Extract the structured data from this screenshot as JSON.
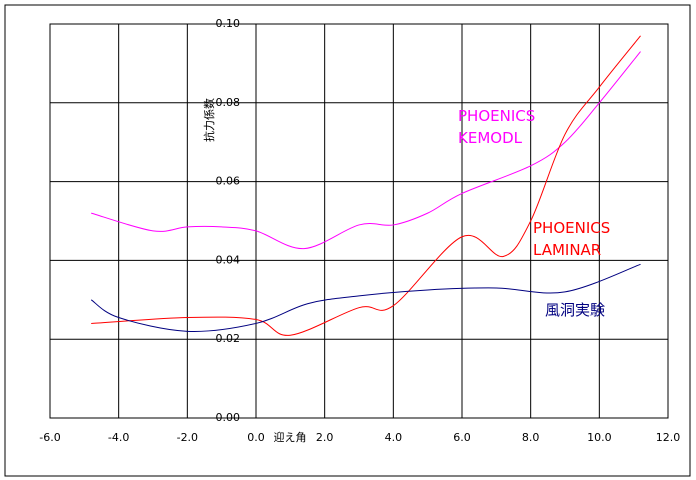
{
  "chart_data": {
    "type": "line",
    "x_label": "迎え角",
    "y_label": "抗力係数",
    "xlim": [
      -6,
      12
    ],
    "ylim": [
      0,
      0.1
    ],
    "xticks": [
      {
        "value": -6,
        "label": "-6.0"
      },
      {
        "value": -4,
        "label": "-4.0"
      },
      {
        "value": -2,
        "label": "-2.0"
      },
      {
        "value": 0,
        "label": "0.0"
      },
      {
        "value": 2,
        "label": "2.0"
      },
      {
        "value": 4,
        "label": "4.0"
      },
      {
        "value": 6,
        "label": "6.0"
      },
      {
        "value": 8,
        "label": "8.0"
      },
      {
        "value": 10,
        "label": "10.0"
      },
      {
        "value": 12,
        "label": "12.0"
      }
    ],
    "yticks": [
      {
        "value": 0,
        "label": "0.00"
      },
      {
        "value": 0.02,
        "label": "0.02"
      },
      {
        "value": 0.04,
        "label": "0.04"
      },
      {
        "value": 0.06,
        "label": "0.06"
      },
      {
        "value": 0.08,
        "label": "0.08"
      },
      {
        "value": 0.1,
        "label": "0.10"
      }
    ],
    "grid": true,
    "series": [
      {
        "name": "PHOENICS KEMODL",
        "color": "#ff00ff",
        "x": [
          -4.8,
          -3,
          -2,
          -1,
          0,
          1.4,
          3,
          4,
          5,
          6,
          8,
          9,
          10,
          11.2
        ],
        "values": [
          0.052,
          0.0475,
          0.0485,
          0.0485,
          0.0475,
          0.043,
          0.049,
          0.049,
          0.052,
          0.057,
          0.064,
          0.07,
          0.08,
          0.093
        ]
      },
      {
        "name": "PHOENICS LAMINAR",
        "color": "#ff0000",
        "x": [
          -4.8,
          -2,
          0,
          1,
          3,
          4,
          6,
          7.2,
          8,
          9,
          10,
          11.2
        ],
        "values": [
          0.024,
          0.0255,
          0.025,
          0.021,
          0.028,
          0.0285,
          0.046,
          0.041,
          0.05,
          0.072,
          0.084,
          0.097
        ]
      },
      {
        "name": "風洞実験",
        "color": "#000080",
        "x": [
          -4.8,
          -4,
          -2,
          0,
          1.5,
          3,
          5,
          7,
          9,
          11.2
        ],
        "values": [
          0.03,
          0.0255,
          0.022,
          0.024,
          0.029,
          0.031,
          0.0325,
          0.033,
          0.032,
          0.039
        ]
      }
    ]
  }
}
